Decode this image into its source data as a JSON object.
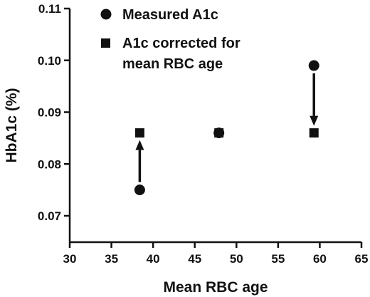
{
  "chart_data": {
    "type": "scatter",
    "title": "",
    "xlabel": "Mean RBC age",
    "ylabel": "HbA1c (%)",
    "xlim": [
      30,
      65
    ],
    "ylim": [
      0.065,
      0.11
    ],
    "xticks": [
      "30",
      "35",
      "40",
      "45",
      "50",
      "55",
      "60",
      "65"
    ],
    "yticks": [
      "0.07",
      "0.08",
      "0.09",
      "0.10",
      "0.11"
    ],
    "grid": false,
    "legend_position": "top-left",
    "series": [
      {
        "name": "Measured A1c",
        "marker": "circle",
        "color": "#111111",
        "points": [
          {
            "x": 38.4,
            "y": 0.075
          },
          {
            "x": 47.9,
            "y": 0.086
          },
          {
            "x": 59.3,
            "y": 0.099
          }
        ]
      },
      {
        "name_lines": [
          "A1c corrected for",
          "mean RBC age"
        ],
        "marker": "square",
        "color": "#111111",
        "points": [
          {
            "x": 38.4,
            "y": 0.086
          },
          {
            "x": 47.9,
            "y": 0.086
          },
          {
            "x": 59.3,
            "y": 0.086
          }
        ]
      }
    ],
    "arrows": [
      {
        "x": 38.4,
        "from": 0.075,
        "to": 0.086
      },
      {
        "x": 59.3,
        "from": 0.099,
        "to": 0.086
      }
    ]
  }
}
